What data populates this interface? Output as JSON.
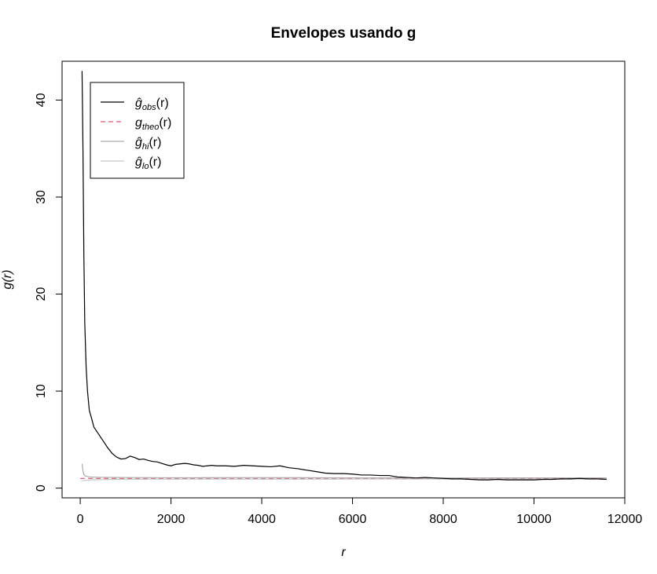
{
  "chart_data": {
    "type": "line",
    "title": "Envelopes usando g",
    "xlabel": "r",
    "ylabel": "g(r)",
    "xlim": [
      -400,
      12000
    ],
    "ylim": [
      -1,
      44
    ],
    "x_ticks": [
      0,
      2000,
      4000,
      6000,
      8000,
      10000,
      12000
    ],
    "y_ticks": [
      0,
      10,
      20,
      30,
      40
    ],
    "x_tick_labels": [
      "0",
      "2000",
      "4000",
      "6000",
      "8000",
      "10000",
      "12000"
    ],
    "y_tick_labels": [
      "0",
      "10",
      "20",
      "30",
      "40"
    ],
    "grid": false,
    "legend_position": "top-left",
    "series": [
      {
        "name": "ĝ_obs(r)",
        "legend_main": "ĝ",
        "legend_sub": "obs",
        "legend_arg": "(r)",
        "color": "#000000",
        "dash": "solid",
        "x": [
          40,
          60,
          80,
          100,
          130,
          160,
          200,
          250,
          300,
          400,
          500,
          600,
          700,
          800,
          900,
          1000,
          1100,
          1200,
          1300,
          1400,
          1500,
          1600,
          1700,
          1800,
          1900,
          2000,
          2100,
          2200,
          2300,
          2400,
          2500,
          2600,
          2700,
          2800,
          2900,
          3000,
          3200,
          3400,
          3600,
          3800,
          4000,
          4200,
          4400,
          4600,
          4800,
          5000,
          5200,
          5400,
          5600,
          5800,
          6000,
          6200,
          6400,
          6600,
          6800,
          7000,
          7200,
          7400,
          7600,
          7800,
          8000,
          8200,
          8400,
          8600,
          8800,
          9000,
          9200,
          9400,
          9600,
          9800,
          10000,
          10200,
          10400,
          10600,
          10800,
          11000,
          11200,
          11400,
          11600
        ],
        "y": [
          43,
          35,
          24,
          17,
          12.5,
          10,
          8,
          7.2,
          6.3,
          5.6,
          4.9,
          4.2,
          3.6,
          3.2,
          3.0,
          3.05,
          3.3,
          3.15,
          2.95,
          3.0,
          2.85,
          2.75,
          2.7,
          2.55,
          2.4,
          2.3,
          2.45,
          2.5,
          2.55,
          2.5,
          2.4,
          2.35,
          2.25,
          2.3,
          2.35,
          2.3,
          2.3,
          2.25,
          2.35,
          2.3,
          2.25,
          2.2,
          2.3,
          2.1,
          2.0,
          1.85,
          1.7,
          1.55,
          1.5,
          1.5,
          1.45,
          1.35,
          1.35,
          1.3,
          1.3,
          1.15,
          1.1,
          1.05,
          1.1,
          1.05,
          1.0,
          0.95,
          0.95,
          0.9,
          0.85,
          0.85,
          0.9,
          0.85,
          0.85,
          0.85,
          0.85,
          0.9,
          0.9,
          0.95,
          0.95,
          1.0,
          0.95,
          0.95,
          0.9
        ]
      },
      {
        "name": "g_theo(r)",
        "legend_main": "g",
        "legend_sub": "theo",
        "legend_arg": "(r)",
        "color": "#DF536B",
        "dash": "dashed",
        "x": [
          0,
          11600
        ],
        "y": [
          1,
          1
        ]
      },
      {
        "name": "ĝ_hi(r)",
        "legend_main": "ĝ",
        "legend_sub": "hi",
        "legend_arg": "(r)",
        "color": "#AAAAAA",
        "dash": "solid",
        "x": [
          40,
          60,
          80,
          120,
          200,
          400,
          800,
          1500,
          2500,
          4000,
          6000,
          8000,
          10000,
          11600
        ],
        "y": [
          2.5,
          1.8,
          1.4,
          1.25,
          1.15,
          1.12,
          1.1,
          1.08,
          1.07,
          1.08,
          1.06,
          1.05,
          1.06,
          1.05
        ]
      },
      {
        "name": "ĝ_lo(r)",
        "legend_main": "ĝ",
        "legend_sub": "lo",
        "legend_arg": "(r)",
        "color": "#C8C8C8",
        "dash": "solid",
        "x": [
          40,
          200,
          800,
          1500,
          2500,
          4000,
          6000,
          8000,
          10000,
          11600
        ],
        "y": [
          0.75,
          0.85,
          0.9,
          0.92,
          0.93,
          0.92,
          0.93,
          0.94,
          0.93,
          0.94
        ]
      }
    ]
  }
}
